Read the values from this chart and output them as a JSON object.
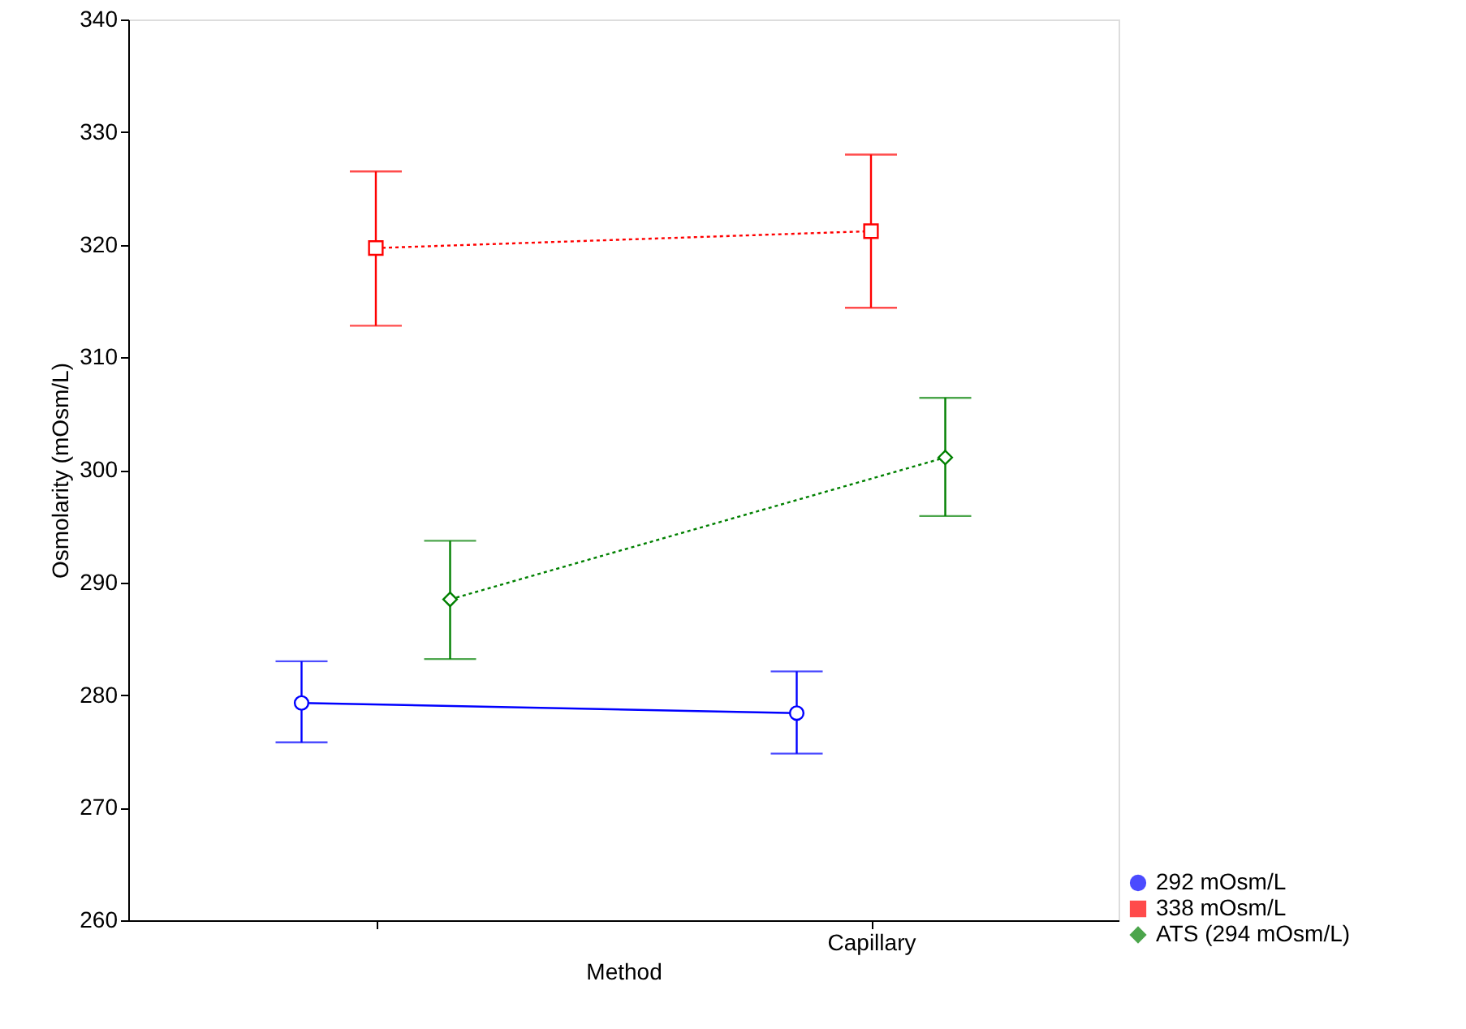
{
  "chart_data": {
    "type": "line",
    "xlabel": "Method",
    "ylabel": "Osmolarity (mOsm/L)",
    "categories": [
      null,
      "Capillary"
    ],
    "ylim": [
      260,
      340
    ],
    "yticks": [
      260,
      270,
      280,
      290,
      300,
      310,
      320,
      330,
      340
    ],
    "grid": false,
    "legend": "bottom right",
    "series": [
      {
        "name": "292 mOsm/L",
        "color": "#0000ff",
        "marker": "circle",
        "line_style": "solid",
        "values": [
          279.3,
          278.4
        ],
        "errors": [
          [
            275.8,
            283.0
          ],
          [
            274.8,
            282.1
          ]
        ]
      },
      {
        "name": "338 mOsm/L",
        "color": "#ff0000",
        "marker": "square",
        "line_style": "dotted",
        "values": [
          319.7,
          321.2
        ],
        "errors": [
          [
            312.8,
            326.5
          ],
          [
            314.4,
            328.0
          ]
        ]
      },
      {
        "name": "ATS (294 mOsm/L)",
        "color": "#008000",
        "marker": "diamond",
        "line_style": "dotted",
        "values": [
          288.5,
          301.1
        ],
        "errors": [
          [
            283.2,
            293.7
          ],
          [
            295.9,
            306.4
          ]
        ]
      }
    ]
  }
}
